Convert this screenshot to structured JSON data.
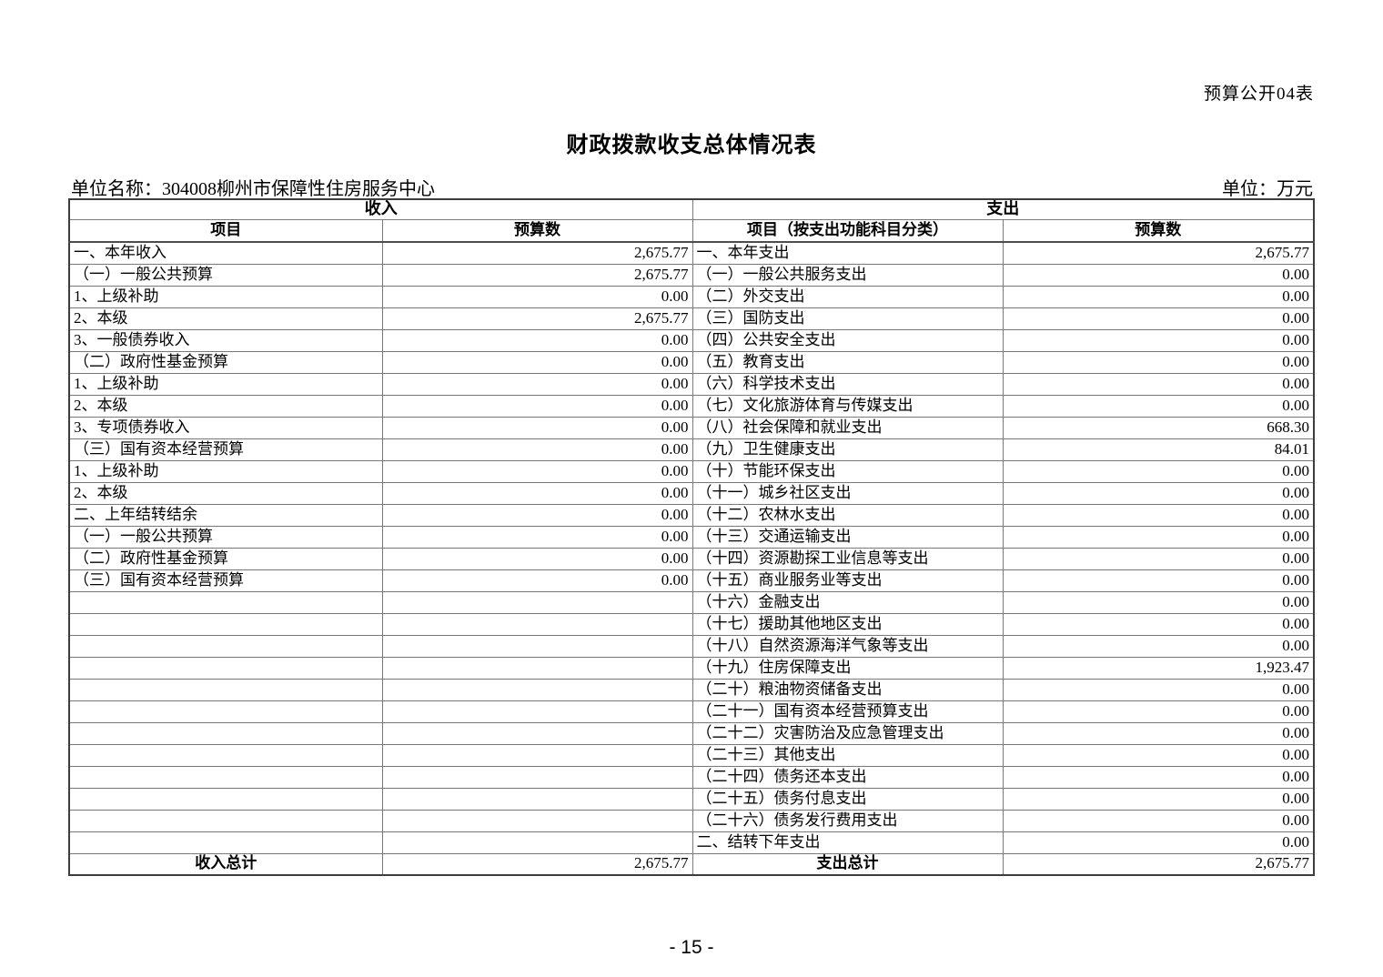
{
  "page": {
    "corner_label": "预算公开04表",
    "title": "财政拨款收支总体情况表",
    "unit_name": "单位名称：304008柳州市保障性住房服务中心",
    "unit_label": "单位：万元",
    "page_number": "- 15 -"
  },
  "table": {
    "revenue_header": "收入",
    "expenditure_header": "支出",
    "columns": {
      "revenue_item": "项目",
      "revenue_budget": "预算数",
      "expenditure_item": "项目（按支出功能科目分类）",
      "expenditure_budget": "预算数"
    },
    "rows": [
      {
        "revenue_item": "一、本年收入",
        "revenue_level": 1,
        "revenue_value": "2,675.77",
        "expenditure_item": "一、本年支出",
        "expenditure_level": 1,
        "expenditure_value": "2,675.77"
      },
      {
        "revenue_item": "（一）一般公共预算",
        "revenue_level": 2,
        "revenue_value": "2,675.77",
        "expenditure_item": "（一）一般公共服务支出",
        "expenditure_level": 2,
        "expenditure_value": "0.00"
      },
      {
        "revenue_item": "1、上级补助",
        "revenue_level": 3,
        "revenue_value": "0.00",
        "expenditure_item": "（二）外交支出",
        "expenditure_level": 2,
        "expenditure_value": "0.00"
      },
      {
        "revenue_item": "2、本级",
        "revenue_level": 3,
        "revenue_value": "2,675.77",
        "expenditure_item": "（三）国防支出",
        "expenditure_level": 2,
        "expenditure_value": "0.00"
      },
      {
        "revenue_item": "3、一般债券收入",
        "revenue_level": 3,
        "revenue_value": "0.00",
        "expenditure_item": "（四）公共安全支出",
        "expenditure_level": 2,
        "expenditure_value": "0.00"
      },
      {
        "revenue_item": "（二）政府性基金预算",
        "revenue_level": 2,
        "revenue_value": "0.00",
        "expenditure_item": "（五）教育支出",
        "expenditure_level": 2,
        "expenditure_value": "0.00"
      },
      {
        "revenue_item": "1、上级补助",
        "revenue_level": 3,
        "revenue_value": "0.00",
        "expenditure_item": "（六）科学技术支出",
        "expenditure_level": 2,
        "expenditure_value": "0.00"
      },
      {
        "revenue_item": "2、本级",
        "revenue_level": 3,
        "revenue_value": "0.00",
        "expenditure_item": "（七）文化旅游体育与传媒支出",
        "expenditure_level": 2,
        "expenditure_value": "0.00"
      },
      {
        "revenue_item": "3、专项债券收入",
        "revenue_level": 3,
        "revenue_value": "0.00",
        "expenditure_item": "（八）社会保障和就业支出",
        "expenditure_level": 2,
        "expenditure_value": "668.30"
      },
      {
        "revenue_item": "（三）国有资本经营预算",
        "revenue_level": 2,
        "revenue_value": "0.00",
        "expenditure_item": "（九）卫生健康支出",
        "expenditure_level": 2,
        "expenditure_value": "84.01"
      },
      {
        "revenue_item": "1、上级补助",
        "revenue_level": 3,
        "revenue_value": "0.00",
        "expenditure_item": "（十）节能环保支出",
        "expenditure_level": 2,
        "expenditure_value": "0.00"
      },
      {
        "revenue_item": "2、本级",
        "revenue_level": 3,
        "revenue_value": "0.00",
        "expenditure_item": "（十一）城乡社区支出",
        "expenditure_level": 2,
        "expenditure_value": "0.00"
      },
      {
        "revenue_item": "二、上年结转结余",
        "revenue_level": 1,
        "revenue_value": "0.00",
        "expenditure_item": "（十二）农林水支出",
        "expenditure_level": 2,
        "expenditure_value": "0.00"
      },
      {
        "revenue_item": "（一）一般公共预算",
        "revenue_level": 2,
        "revenue_value": "0.00",
        "expenditure_item": "（十三）交通运输支出",
        "expenditure_level": 2,
        "expenditure_value": "0.00"
      },
      {
        "revenue_item": "（二）政府性基金预算",
        "revenue_level": 2,
        "revenue_value": "0.00",
        "expenditure_item": "（十四）资源勘探工业信息等支出",
        "expenditure_level": 2,
        "expenditure_value": "0.00"
      },
      {
        "revenue_item": "（三）国有资本经营预算",
        "revenue_level": 2,
        "revenue_value": "0.00",
        "expenditure_item": "（十五）商业服务业等支出",
        "expenditure_level": 2,
        "expenditure_value": "0.00"
      },
      {
        "revenue_item": "",
        "revenue_level": 0,
        "revenue_value": "",
        "expenditure_item": "（十六）金融支出",
        "expenditure_level": 2,
        "expenditure_value": "0.00"
      },
      {
        "revenue_item": "",
        "revenue_level": 0,
        "revenue_value": "",
        "expenditure_item": "（十七）援助其他地区支出",
        "expenditure_level": 2,
        "expenditure_value": "0.00"
      },
      {
        "revenue_item": "",
        "revenue_level": 0,
        "revenue_value": "",
        "expenditure_item": "（十八）自然资源海洋气象等支出",
        "expenditure_level": 2,
        "expenditure_value": "0.00"
      },
      {
        "revenue_item": "",
        "revenue_level": 0,
        "revenue_value": "",
        "expenditure_item": "（十九）住房保障支出",
        "expenditure_level": 2,
        "expenditure_value": "1,923.47"
      },
      {
        "revenue_item": "",
        "revenue_level": 0,
        "revenue_value": "",
        "expenditure_item": "（二十）粮油物资储备支出",
        "expenditure_level": 2,
        "expenditure_value": "0.00"
      },
      {
        "revenue_item": "",
        "revenue_level": 0,
        "revenue_value": "",
        "expenditure_item": "（二十一）国有资本经营预算支出",
        "expenditure_level": 2,
        "expenditure_value": "0.00"
      },
      {
        "revenue_item": "",
        "revenue_level": 0,
        "revenue_value": "",
        "expenditure_item": "（二十二）灾害防治及应急管理支出",
        "expenditure_level": 2,
        "expenditure_value": "0.00"
      },
      {
        "revenue_item": "",
        "revenue_level": 0,
        "revenue_value": "",
        "expenditure_item": "（二十三）其他支出",
        "expenditure_level": 2,
        "expenditure_value": "0.00"
      },
      {
        "revenue_item": "",
        "revenue_level": 0,
        "revenue_value": "",
        "expenditure_item": "（二十四）债务还本支出",
        "expenditure_level": 2,
        "expenditure_value": "0.00"
      },
      {
        "revenue_item": "",
        "revenue_level": 0,
        "revenue_value": "",
        "expenditure_item": "（二十五）债务付息支出",
        "expenditure_level": 2,
        "expenditure_value": "0.00"
      },
      {
        "revenue_item": "",
        "revenue_level": 0,
        "revenue_value": "",
        "expenditure_item": "（二十六）债务发行费用支出",
        "expenditure_level": 2,
        "expenditure_value": "0.00"
      },
      {
        "revenue_item": "",
        "revenue_level": 0,
        "revenue_value": "",
        "expenditure_item": "二、结转下年支出",
        "expenditure_level": 1,
        "expenditure_value": "0.00"
      }
    ],
    "totals": {
      "revenue_label": "收入总计",
      "revenue_value": "2,675.77",
      "expenditure_label": "支出总计",
      "expenditure_value": "2,675.77"
    }
  }
}
